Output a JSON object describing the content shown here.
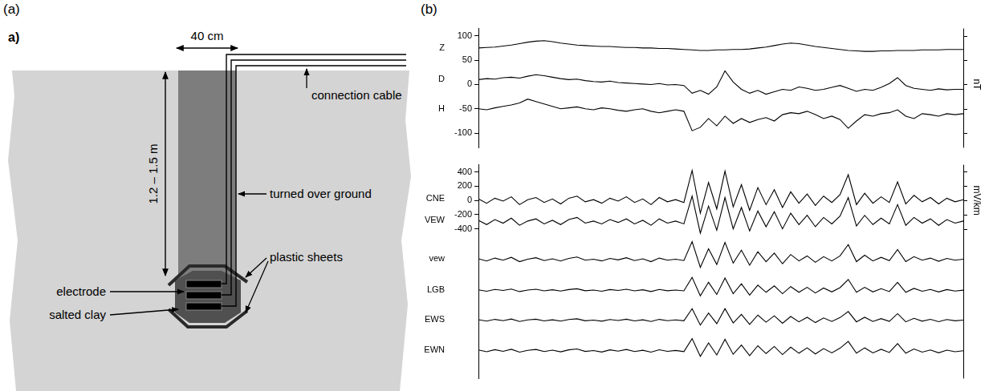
{
  "panel_labels": [
    "(a)",
    "(b)"
  ],
  "diagram": {
    "title": "a)",
    "width_label": "40 cm",
    "depth_label": "1.2 – 1.5 m",
    "labels": {
      "connection_cable": "connection cable",
      "turned_over_ground": "turned over ground",
      "plastic_sheets": "plastic sheets",
      "electrode": "electrode",
      "salted_clay": "salted clay"
    }
  },
  "chart_data": [
    {
      "type": "line",
      "y_label": "nT",
      "grid": false,
      "tick_labels": "y",
      "ylim": [
        -130,
        115
      ],
      "yticks": [
        -100,
        -50,
        0,
        50,
        100
      ],
      "categories": [
        null,
        null,
        null,
        null,
        null,
        null,
        null,
        null,
        null,
        null,
        null,
        null,
        null,
        null,
        null,
        null,
        null,
        null,
        null,
        null,
        null,
        null,
        null,
        null,
        null,
        null,
        null,
        null,
        null,
        null,
        null,
        null,
        null,
        null,
        null,
        null,
        null,
        null,
        null,
        null,
        null,
        null,
        null,
        null,
        null,
        null,
        null,
        null,
        null,
        null,
        null,
        null,
        null,
        null,
        null,
        null,
        null,
        null,
        null,
        null
      ],
      "series": [
        {
          "name": "Z",
          "color": "#000000",
          "values": [
            75,
            76,
            77,
            79,
            81,
            84,
            87,
            89,
            90,
            88,
            85,
            83,
            81,
            80,
            79,
            78,
            78,
            77,
            76,
            76,
            75,
            75,
            74,
            74,
            73,
            72,
            71,
            70,
            70,
            71,
            71,
            72,
            72,
            73,
            75,
            77,
            80,
            83,
            85,
            84,
            81,
            78,
            76,
            74,
            72,
            70,
            69,
            68,
            68,
            69,
            69,
            70,
            70,
            70,
            71,
            71,
            71,
            72,
            72,
            72
          ]
        },
        {
          "name": "D",
          "color": "#000000",
          "values": [
            10,
            12,
            11,
            14,
            15,
            13,
            17,
            20,
            18,
            15,
            12,
            10,
            11,
            8,
            6,
            5,
            7,
            4,
            3,
            2,
            1,
            0,
            2,
            -1,
            0,
            -2,
            -18,
            -12,
            -20,
            -5,
            28,
            5,
            -10,
            -18,
            -12,
            -20,
            -15,
            -10,
            -12,
            -5,
            -8,
            -12,
            -10,
            -6,
            -2,
            -8,
            -14,
            -10,
            -12,
            -6,
            2,
            14,
            -2,
            -8,
            -10,
            -12,
            -9,
            -11,
            -10,
            -10
          ]
        },
        {
          "name": "H",
          "color": "#000000",
          "values": [
            -50,
            -52,
            -48,
            -45,
            -42,
            -38,
            -30,
            -35,
            -40,
            -45,
            -50,
            -48,
            -46,
            -50,
            -52,
            -48,
            -50,
            -53,
            -55,
            -52,
            -50,
            -55,
            -58,
            -55,
            -52,
            -55,
            -95,
            -88,
            -70,
            -85,
            -65,
            -80,
            -70,
            -78,
            -72,
            -68,
            -75,
            -62,
            -58,
            -60,
            -55,
            -62,
            -70,
            -65,
            -72,
            -90,
            -75,
            -62,
            -65,
            -60,
            -58,
            -52,
            -65,
            -70,
            -60,
            -62,
            -65,
            -60,
            -62,
            -60
          ]
        }
      ]
    },
    {
      "type": "line",
      "y_label": "mV/km",
      "grid": false,
      "tick_labels": "y",
      "ylim": [
        -2500,
        500
      ],
      "yticks": [
        -400,
        -200,
        0,
        200,
        400
      ],
      "categories": [
        null,
        null,
        null,
        null,
        null,
        null,
        null,
        null,
        null,
        null,
        null,
        null,
        null,
        null,
        null,
        null,
        null,
        null,
        null,
        null,
        null,
        null,
        null,
        null,
        null,
        null,
        null,
        null,
        null,
        null,
        null,
        null,
        null,
        null,
        null,
        null,
        null,
        null,
        null,
        null,
        null,
        null,
        null,
        null,
        null,
        null,
        null,
        null,
        null,
        null,
        null,
        null,
        null,
        null,
        null,
        null,
        null,
        null,
        null,
        null
      ],
      "series": [
        {
          "name": "CNE",
          "color": "#000000",
          "values": [
            20,
            -40,
            30,
            -10,
            50,
            -60,
            10,
            40,
            -30,
            20,
            -50,
            30,
            60,
            -20,
            10,
            -40,
            30,
            -10,
            50,
            -30,
            20,
            -60,
            40,
            -20,
            10,
            -30,
            420,
            -180,
            250,
            -120,
            410,
            -90,
            220,
            -140,
            180,
            -60,
            150,
            -100,
            120,
            -40,
            90,
            -70,
            60,
            -30,
            80,
            360,
            -60,
            100,
            -40,
            50,
            -30,
            260,
            -50,
            70,
            -20,
            40,
            -50,
            30,
            -20,
            10
          ]
        },
        {
          "name": "VEW",
          "color": "#000000",
          "values": [
            -280,
            -340,
            -270,
            -320,
            -250,
            -350,
            -290,
            -260,
            -330,
            -280,
            -340,
            -270,
            -240,
            -320,
            -290,
            -330,
            -270,
            -310,
            -260,
            -330,
            -280,
            -350,
            -260,
            -320,
            -290,
            -330,
            60,
            -460,
            -80,
            -420,
            40,
            -400,
            -100,
            -430,
            -150,
            -370,
            -160,
            -400,
            -180,
            -340,
            -210,
            -370,
            -240,
            -330,
            -220,
            40,
            -360,
            -210,
            -340,
            -250,
            -330,
            -60,
            -350,
            -240,
            -320,
            -260,
            -350,
            -270,
            -320,
            -290
          ]
        },
        {
          "name": "vew",
          "color": "#000000",
          "values": [
            -820,
            -850,
            -810,
            -840,
            -800,
            -860,
            -825,
            -805,
            -845,
            -820,
            -850,
            -815,
            -795,
            -840,
            -825,
            -850,
            -815,
            -835,
            -805,
            -845,
            -820,
            -860,
            -810,
            -840,
            -825,
            -845,
            -580,
            -940,
            -680,
            -900,
            -590,
            -880,
            -700,
            -910,
            -720,
            -860,
            -740,
            -890,
            -760,
            -850,
            -780,
            -870,
            -790,
            -850,
            -780,
            -620,
            -860,
            -770,
            -850,
            -800,
            -845,
            -690,
            -860,
            -790,
            -840,
            -810,
            -855,
            -815,
            -840,
            -825
          ]
        },
        {
          "name": "LGB",
          "color": "#000000",
          "values": [
            -1255,
            -1275,
            -1250,
            -1265,
            -1245,
            -1280,
            -1258,
            -1248,
            -1270,
            -1255,
            -1272,
            -1252,
            -1240,
            -1268,
            -1258,
            -1275,
            -1252,
            -1265,
            -1248,
            -1270,
            -1255,
            -1280,
            -1250,
            -1268,
            -1258,
            -1270,
            -1080,
            -1340,
            -1150,
            -1320,
            -1090,
            -1310,
            -1170,
            -1330,
            -1190,
            -1290,
            -1200,
            -1310,
            -1210,
            -1290,
            -1220,
            -1300,
            -1230,
            -1285,
            -1225,
            -1110,
            -1290,
            -1220,
            -1285,
            -1240,
            -1280,
            -1150,
            -1290,
            -1235,
            -1275,
            -1250,
            -1285,
            -1252,
            -1272,
            -1260
          ]
        },
        {
          "name": "EWS",
          "color": "#000000",
          "values": [
            -1675,
            -1695,
            -1670,
            -1688,
            -1665,
            -1700,
            -1678,
            -1668,
            -1692,
            -1676,
            -1694,
            -1672,
            -1662,
            -1690,
            -1680,
            -1696,
            -1672,
            -1686,
            -1668,
            -1692,
            -1676,
            -1700,
            -1670,
            -1688,
            -1678,
            -1690,
            -1520,
            -1750,
            -1580,
            -1730,
            -1520,
            -1720,
            -1600,
            -1740,
            -1610,
            -1710,
            -1620,
            -1725,
            -1630,
            -1705,
            -1640,
            -1715,
            -1650,
            -1700,
            -1645,
            -1560,
            -1705,
            -1640,
            -1700,
            -1660,
            -1698,
            -1590,
            -1705,
            -1655,
            -1695,
            -1670,
            -1702,
            -1672,
            -1690,
            -1680
          ]
        },
        {
          "name": "EWN",
          "color": "#000000",
          "values": [
            -2100,
            -2125,
            -2095,
            -2118,
            -2090,
            -2130,
            -2105,
            -2092,
            -2122,
            -2102,
            -2126,
            -2098,
            -2085,
            -2120,
            -2108,
            -2128,
            -2098,
            -2116,
            -2092,
            -2122,
            -2104,
            -2130,
            -2096,
            -2118,
            -2106,
            -2122,
            -1940,
            -2190,
            -2000,
            -2170,
            -1950,
            -2160,
            -2030,
            -2180,
            -2040,
            -2150,
            -2050,
            -2165,
            -2060,
            -2145,
            -2070,
            -2155,
            -2080,
            -2140,
            -2075,
            -1980,
            -2145,
            -2070,
            -2140,
            -2090,
            -2135,
            -2010,
            -2145,
            -2085,
            -2130,
            -2100,
            -2140,
            -2102,
            -2125,
            -2110
          ]
        }
      ]
    }
  ]
}
